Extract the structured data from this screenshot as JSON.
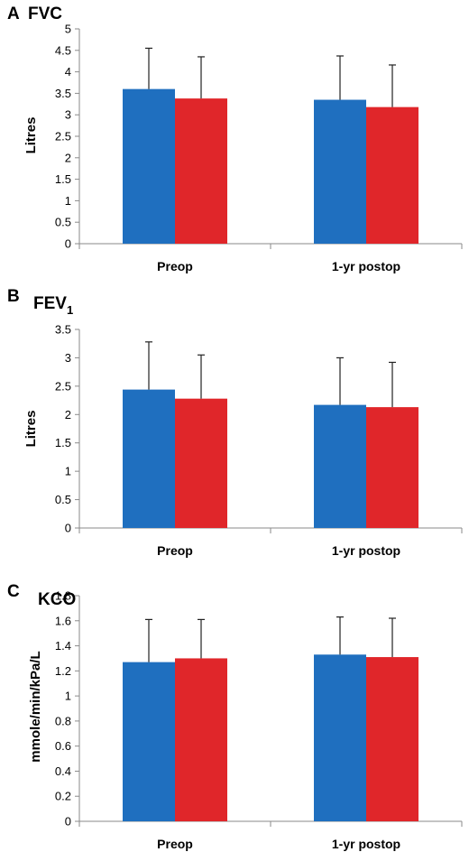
{
  "chart_data": [
    {
      "type": "bar",
      "panel": "A",
      "title": "FVC",
      "ylabel": "Litres",
      "categories": [
        "Preop",
        "1-yr postop"
      ],
      "series": [
        {
          "color": "#1f6fbf",
          "values": [
            3.6,
            3.35
          ],
          "error": [
            0.95,
            1.02
          ]
        },
        {
          "color": "#e0262a",
          "values": [
            3.38,
            3.18
          ],
          "error": [
            0.97,
            0.98
          ]
        }
      ],
      "ylim": [
        0,
        5
      ],
      "yticks": [
        "0",
        "0.5",
        "1",
        "1.5",
        "2",
        "2.5",
        "3",
        "3.5",
        "4",
        "4.5",
        "5"
      ],
      "grid": false
    },
    {
      "type": "bar",
      "panel": "B",
      "title": "FEV",
      "title_sub": "1",
      "ylabel": "Litres",
      "categories": [
        "Preop",
        "1-yr postop"
      ],
      "series": [
        {
          "color": "#1f6fbf",
          "values": [
            2.44,
            2.17
          ],
          "error": [
            0.84,
            0.83
          ]
        },
        {
          "color": "#e0262a",
          "values": [
            2.28,
            2.13
          ],
          "error": [
            0.77,
            0.79
          ]
        }
      ],
      "ylim": [
        0,
        3.5
      ],
      "yticks": [
        "0",
        "0.5",
        "1",
        "1.5",
        "2",
        "2.5",
        "3",
        "3.5"
      ],
      "grid": false
    },
    {
      "type": "bar",
      "panel": "C",
      "title": "KCO",
      "ylabel": "mmole/min/kPa/L",
      "categories": [
        "Preop",
        "1-yr postop"
      ],
      "series": [
        {
          "color": "#1f6fbf",
          "values": [
            1.27,
            1.33
          ],
          "error": [
            0.34,
            0.3
          ]
        },
        {
          "color": "#e0262a",
          "values": [
            1.3,
            1.31
          ],
          "error": [
            0.31,
            0.31
          ]
        }
      ],
      "ylim": [
        0,
        1.8
      ],
      "yticks": [
        "0",
        "0.2",
        "0.4",
        "0.6",
        "0.8",
        "1",
        "1.2",
        "1.4",
        "1.6",
        "1.8"
      ],
      "grid": false
    }
  ]
}
